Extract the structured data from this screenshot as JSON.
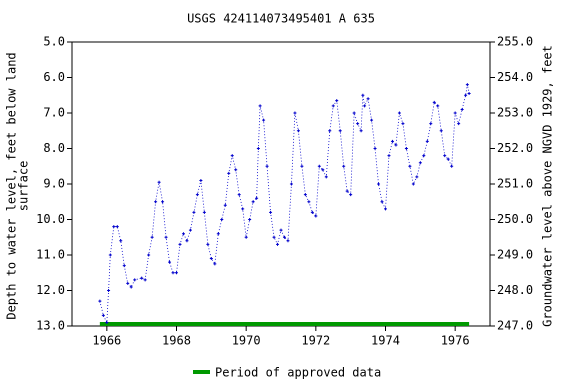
{
  "chart_data": {
    "type": "scatter",
    "title": "USGS 424114073495401 A 635",
    "ylabel": [
      "Depth to water level, feet below land",
      "surface"
    ],
    "y2label": "Groundwater level above NGVD 1929, feet",
    "xlim": [
      1965,
      1977
    ],
    "xticks": [
      1966,
      1968,
      1970,
      1972,
      1974,
      1976
    ],
    "ylim": [
      5,
      13
    ],
    "y_inverted": true,
    "yticks": [
      {
        "value": 5,
        "label": "5.0"
      },
      {
        "value": 6,
        "label": "6.0"
      },
      {
        "value": 7,
        "label": "7.0"
      },
      {
        "value": 8,
        "label": "8.0"
      },
      {
        "value": 9,
        "label": "9.0"
      },
      {
        "value": 10,
        "label": "10.0"
      },
      {
        "value": 11,
        "label": "11.0"
      },
      {
        "value": 12,
        "label": "12.0"
      },
      {
        "value": 13,
        "label": "13.0"
      }
    ],
    "y2lim": [
      247,
      255
    ],
    "y2ticks": [
      {
        "value": 255,
        "label": "255.0"
      },
      {
        "value": 254,
        "label": "254.0"
      },
      {
        "value": 253,
        "label": "253.0"
      },
      {
        "value": 252,
        "label": "252.0"
      },
      {
        "value": 251,
        "label": "251.0"
      },
      {
        "value": 250,
        "label": "250.0"
      },
      {
        "value": 249,
        "label": "249.0"
      },
      {
        "value": 248,
        "label": "248.0"
      },
      {
        "value": 247,
        "label": "247.0"
      }
    ],
    "series": [
      {
        "color": "#0000cc",
        "x": [
          1965.8,
          1965.9,
          1966.0,
          1966.05,
          1966.1,
          1966.2,
          1966.3,
          1966.4,
          1966.5,
          1966.6,
          1966.7,
          1966.8,
          1967.0,
          1967.1,
          1967.2,
          1967.3,
          1967.4,
          1967.5,
          1967.6,
          1967.7,
          1967.8,
          1967.9,
          1968.0,
          1968.1,
          1968.2,
          1968.3,
          1968.4,
          1968.5,
          1968.6,
          1968.7,
          1968.8,
          1968.9,
          1969.0,
          1969.1,
          1969.2,
          1969.3,
          1969.4,
          1969.5,
          1969.6,
          1969.7,
          1969.8,
          1969.9,
          1970.0,
          1970.1,
          1970.2,
          1970.3,
          1970.35,
          1970.4,
          1970.5,
          1970.6,
          1970.7,
          1970.8,
          1970.9,
          1971.0,
          1971.1,
          1971.2,
          1971.3,
          1971.4,
          1971.5,
          1971.6,
          1971.7,
          1971.8,
          1971.9,
          1972.0,
          1972.1,
          1972.2,
          1972.3,
          1972.4,
          1972.5,
          1972.6,
          1972.7,
          1972.8,
          1972.9,
          1973.0,
          1973.1,
          1973.2,
          1973.3,
          1973.35,
          1973.4,
          1973.5,
          1973.6,
          1973.7,
          1973.8,
          1973.9,
          1974.0,
          1974.1,
          1974.2,
          1974.3,
          1974.4,
          1974.5,
          1974.6,
          1974.7,
          1974.8,
          1974.9,
          1975.0,
          1975.1,
          1975.2,
          1975.3,
          1975.4,
          1975.5,
          1975.6,
          1975.7,
          1975.8,
          1975.9,
          1976.0,
          1976.1,
          1976.2,
          1976.3,
          1976.35,
          1976.4
        ],
        "values": [
          12.3,
          12.7,
          12.9,
          12.0,
          11.0,
          10.2,
          10.2,
          10.6,
          11.3,
          11.8,
          11.9,
          11.7,
          11.65,
          11.7,
          11.0,
          10.5,
          9.5,
          8.95,
          9.5,
          10.5,
          11.2,
          11.5,
          11.5,
          10.7,
          10.4,
          10.6,
          10.3,
          9.8,
          9.3,
          8.9,
          9.8,
          10.7,
          11.1,
          11.25,
          10.4,
          10.0,
          9.6,
          8.7,
          8.2,
          8.6,
          9.3,
          9.7,
          10.5,
          10.0,
          9.5,
          9.4,
          8.0,
          6.8,
          7.2,
          8.5,
          9.8,
          10.5,
          10.7,
          10.3,
          10.5,
          10.6,
          9.0,
          7.0,
          7.5,
          8.5,
          9.3,
          9.5,
          9.8,
          9.9,
          8.5,
          8.6,
          8.8,
          7.5,
          6.8,
          6.65,
          7.5,
          8.5,
          9.2,
          9.3,
          7.0,
          7.3,
          7.5,
          6.5,
          6.8,
          6.6,
          7.2,
          8.0,
          9.0,
          9.5,
          9.7,
          8.2,
          7.8,
          7.9,
          7.0,
          7.3,
          8.0,
          8.5,
          9.0,
          8.8,
          8.4,
          8.2,
          7.8,
          7.3,
          6.7,
          6.8,
          7.5,
          8.2,
          8.3,
          8.5,
          7.0,
          7.3,
          6.9,
          6.5,
          6.2,
          6.45
        ]
      }
    ],
    "approved_periods": [
      [
        1965.8,
        1976.4
      ]
    ],
    "approved_color": "#009900",
    "legend": "Period of approved data"
  }
}
